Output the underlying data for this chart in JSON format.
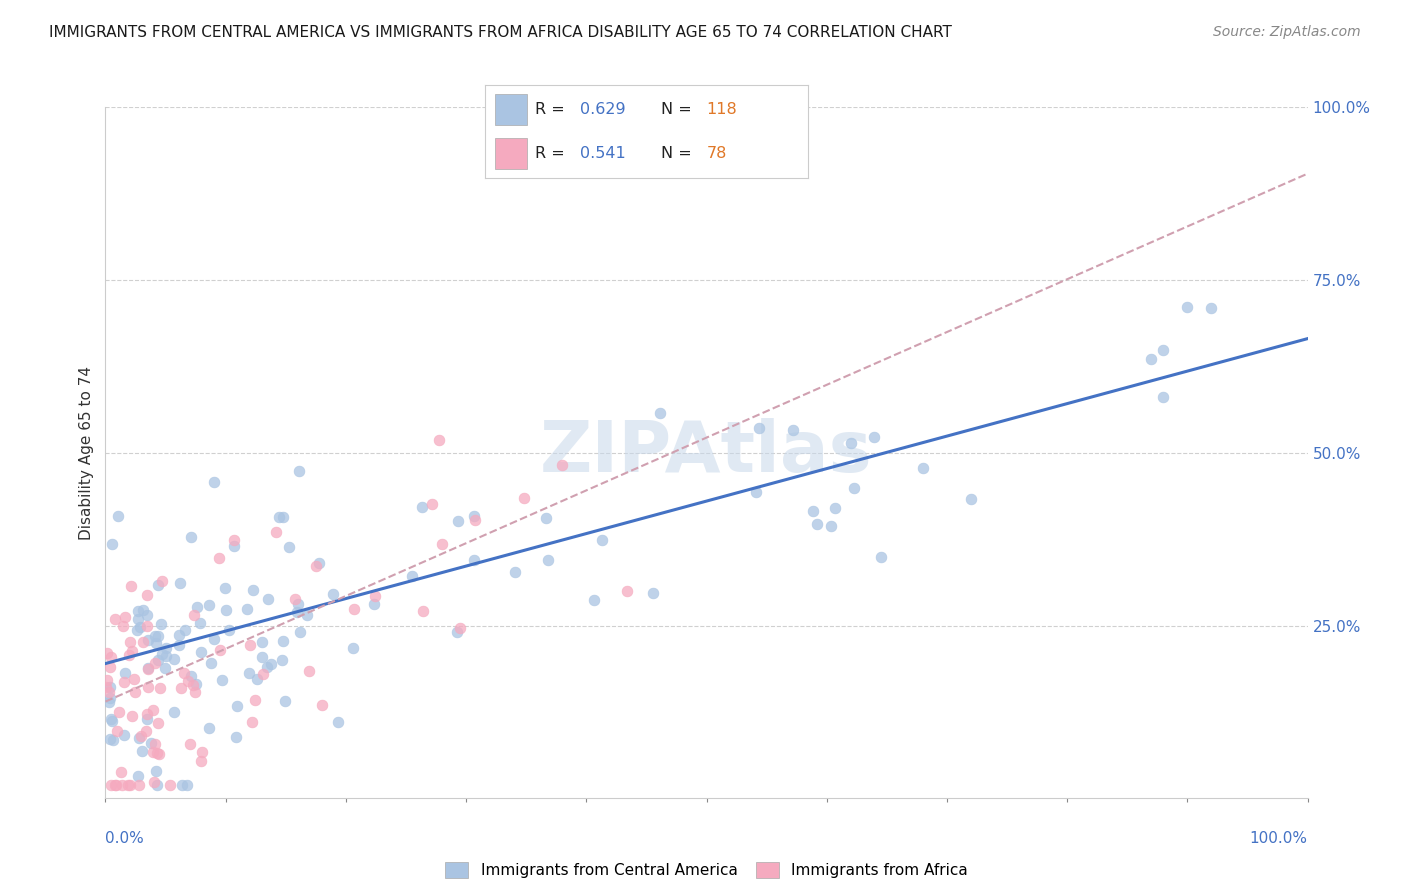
{
  "title": "IMMIGRANTS FROM CENTRAL AMERICA VS IMMIGRANTS FROM AFRICA DISABILITY AGE 65 TO 74 CORRELATION CHART",
  "source": "Source: ZipAtlas.com",
  "ylabel": "Disability Age 65 to 74",
  "legend_blue_r": "R = 0.629",
  "legend_blue_n": "N = 118",
  "legend_pink_r": "R = 0.541",
  "legend_pink_n": "N = 78",
  "legend_label_blue": "Immigrants from Central America",
  "legend_label_pink": "Immigrants from Africa",
  "blue_color": "#aac4e2",
  "pink_color": "#f5aabf",
  "blue_line_color": "#4472c4",
  "pink_line_color": "#e06080",
  "pink_dash_color": "#d0a0b0",
  "watermark_color": "#c8d8ea",
  "right_tick_color": "#4472c4",
  "xlim": [
    0.0,
    1.0
  ],
  "ylim": [
    0.0,
    1.0
  ],
  "blue_r": 0.629,
  "blue_n": 118,
  "pink_r": 0.541,
  "pink_n": 78,
  "blue_line_x0": 0.0,
  "blue_line_y0": 0.195,
  "blue_line_x1": 1.0,
  "blue_line_y1": 0.665,
  "pink_line_x0": 0.0,
  "pink_line_y0": 0.14,
  "pink_line_x1": 0.55,
  "pink_line_y1": 0.56
}
